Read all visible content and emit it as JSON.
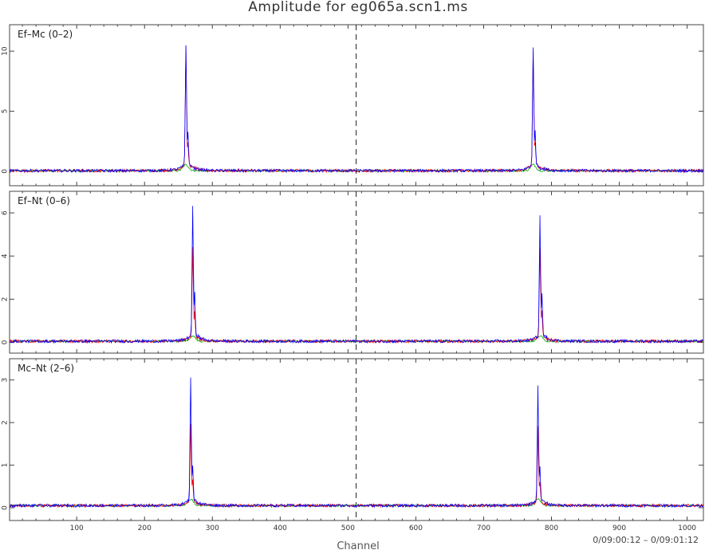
{
  "chart_data": {
    "type": "line",
    "title": "Amplitude for eg065a.scn1.ms",
    "xlabel": "Channel",
    "time_range": "0/09:00:12 – 0/09:01:12",
    "xlim": [
      1,
      1024
    ],
    "x_ticks": [
      100,
      200,
      300,
      400,
      500,
      600,
      700,
      800,
      900,
      1000
    ],
    "divider_channel": 512,
    "series_colors": {
      "blue": "#0000ff",
      "red": "#ff0000",
      "green": "#00aa00"
    },
    "panels": [
      {
        "label": "Ef–Mc (0–2)",
        "ylim": [
          -1.2,
          12.2
        ],
        "y_ticks": [
          0,
          5,
          10
        ],
        "baseline": 0.05,
        "peaks": [
          {
            "channel": 261,
            "blue": 10.0,
            "red": 9.8,
            "green": 0.5,
            "shoulder_channel": 264,
            "shoulder_height": 2.6
          },
          {
            "channel": 773,
            "blue": 9.7,
            "red": 9.5,
            "green": 0.5,
            "shoulder_channel": 776,
            "shoulder_height": 2.6
          }
        ]
      },
      {
        "label": "Ef–Nt (0–6)",
        "ylim": [
          -0.5,
          7.0
        ],
        "y_ticks": [
          0,
          2,
          4,
          6
        ],
        "baseline": 0.05,
        "peaks": [
          {
            "channel": 271,
            "blue": 6.0,
            "red": 4.2,
            "green": 0.25,
            "shoulder_channel": 274,
            "shoulder_height": 1.8
          },
          {
            "channel": 783,
            "blue": 5.5,
            "red": 4.1,
            "green": 0.25,
            "shoulder_channel": 786,
            "shoulder_height": 1.8
          }
        ]
      },
      {
        "label": "Mc–Nt (2–6)",
        "ylim": [
          -0.3,
          3.5
        ],
        "y_ticks": [
          0,
          1,
          2,
          3
        ],
        "baseline": 0.05,
        "peaks": [
          {
            "channel": 268,
            "blue": 2.85,
            "red": 1.8,
            "green": 0.15,
            "shoulder_channel": 271,
            "shoulder_height": 0.75
          },
          {
            "channel": 780,
            "blue": 2.7,
            "red": 1.75,
            "green": 0.15,
            "shoulder_channel": 783,
            "shoulder_height": 0.7
          }
        ]
      }
    ]
  }
}
